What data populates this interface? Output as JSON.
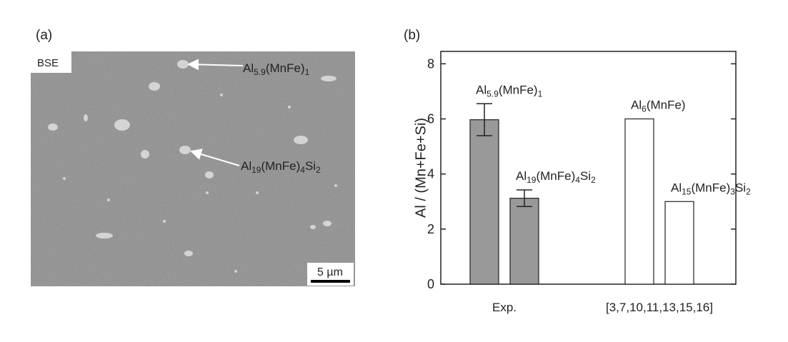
{
  "panel_a": {
    "label": "(a)",
    "detector": "BSE",
    "scale_bar": "5 µm",
    "annotations": [
      [
        "Al",
        "5.9",
        "(MnFe)",
        "1"
      ],
      [
        "Al",
        "19",
        "(MnFe)",
        "4",
        "Si",
        "2"
      ]
    ]
  },
  "chart_data": {
    "type": "bar",
    "panel_label": "(b)",
    "y_label": "Al / (Mn+Fe+Si)",
    "categories": [
      "Exp.",
      "[3,7,10,11,13,15,16]"
    ],
    "series": [
      {
        "color": "#999999",
        "values": [
          5.97,
          3.12
        ],
        "errors": [
          0.58,
          0.3
        ],
        "labels": [
          [
            "Al",
            "5.9",
            "(MnFe)",
            "1"
          ],
          [
            "Al",
            "19",
            "(MnFe)",
            "4",
            "Si",
            "2"
          ]
        ]
      },
      {
        "color": "#ffffff",
        "values": [
          6,
          3
        ],
        "labels": [
          [
            "Al",
            "6",
            "(MnFe)"
          ],
          [
            "Al",
            "15",
            "(MnFe)",
            "3",
            "Si",
            "2"
          ]
        ]
      }
    ],
    "ylim": [
      0,
      8.45
    ],
    "yticks": [
      0,
      2,
      4,
      6,
      8
    ]
  }
}
